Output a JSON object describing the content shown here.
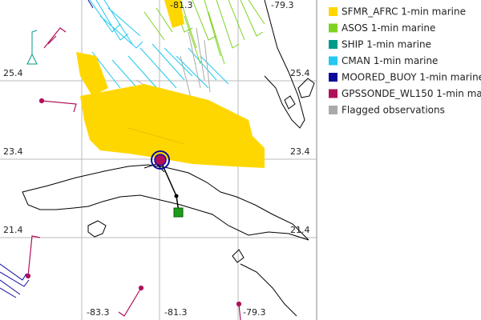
{
  "map": {
    "grid_labels": {
      "top": [
        "-81.3",
        "-79.3"
      ],
      "bottom": [
        "-83.3",
        "-81.3",
        "-79.3"
      ],
      "left": [
        "25.4",
        "23.4",
        "21.4"
      ],
      "right": [
        "25.4",
        "23.4",
        "21.4"
      ]
    },
    "legend": [
      {
        "label": "SFMR_AFRC 1-min marine",
        "color": "#ffd700"
      },
      {
        "label": "ASOS 1-min marine",
        "color": "#7ed321"
      },
      {
        "label": "SHIP 1-min marine",
        "color": "#009a8a"
      },
      {
        "label": "CMAN 1-min marine",
        "color": "#22c8f0"
      },
      {
        "label": "MOORED_BUOY 1-min marine",
        "color": "#0a0a9a"
      },
      {
        "label": "GPSSONDE_WL150 1-min mar",
        "color": "#b0105a"
      },
      {
        "label": "Flagged observations",
        "color": "#aaaaaa"
      }
    ]
  }
}
